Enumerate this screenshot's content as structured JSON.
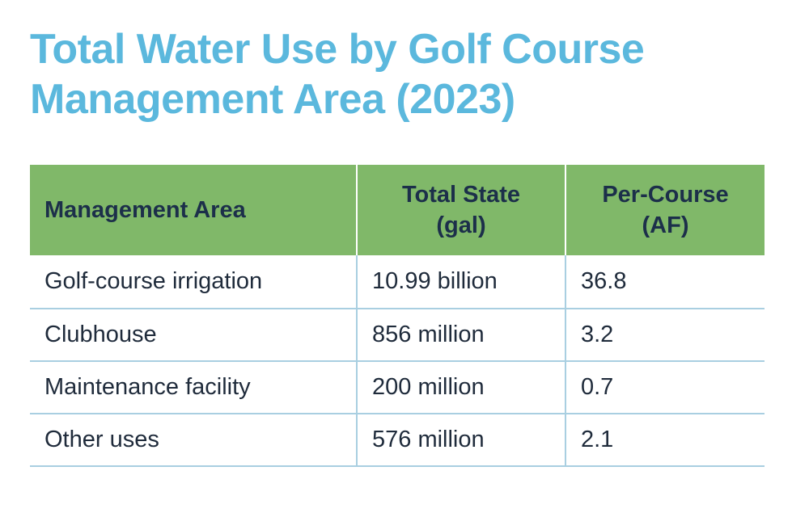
{
  "title": {
    "line1": "Total Water Use by Golf Course",
    "line2": "Management Area (2023)"
  },
  "table": {
    "headers": {
      "area": "Management Area",
      "total_line1": "Total State",
      "total_line2": "(gal)",
      "per_line1": "Per-Course",
      "per_line2": "(AF)"
    },
    "rows": [
      {
        "area": "Golf-course irrigation",
        "total": "10.99 billion",
        "per_course": "36.8"
      },
      {
        "area": "Clubhouse",
        "total": "856 million",
        "per_course": "3.2"
      },
      {
        "area": "Maintenance facility",
        "total": "200 million",
        "per_course": "0.7"
      },
      {
        "area": "Other uses",
        "total": "576 million",
        "per_course": "2.1"
      }
    ]
  },
  "colors": {
    "title": "#5bb8dd",
    "header_bg": "#80b869",
    "header_text": "#1c2f4a",
    "body_text": "#1f2b3b",
    "rule": "#a9cfe1"
  }
}
